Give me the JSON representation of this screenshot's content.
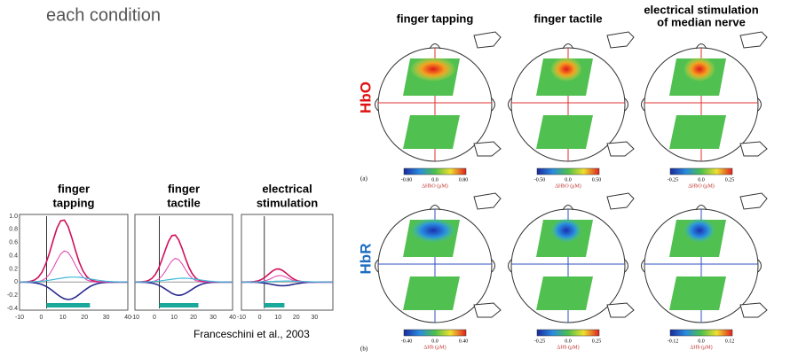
{
  "header": {
    "title": "each condition"
  },
  "time_courses": {
    "yticks": [
      "1.0",
      "0.8",
      "0.6",
      "0.4",
      "0.2",
      "0",
      "-0.2",
      "-0.4"
    ],
    "panels": [
      {
        "label": [
          "finger",
          "tapping"
        ],
        "xticks": [
          "-10",
          "0",
          "10",
          "20",
          "30",
          "40"
        ]
      },
      {
        "label": [
          "finger",
          "tactile"
        ],
        "xticks": [
          "-10",
          "0",
          "10",
          "20",
          "30",
          "40"
        ]
      },
      {
        "label": [
          "electrical",
          "stimulation"
        ],
        "xticks": [
          "-10",
          "0",
          "10",
          "20",
          "30"
        ]
      }
    ],
    "citation": "Franceschini et al., 2003"
  },
  "maps": {
    "columns": [
      [
        "finger tapping"
      ],
      [
        "finger tactile"
      ],
      [
        "electrical stimulation",
        "of median nerve"
      ]
    ],
    "rows": [
      {
        "label": "HbO",
        "panel": "(a)",
        "colorbars": [
          {
            "ticks": [
              "-0.80",
              "0.0",
              "0.80"
            ],
            "unit": "ΔHbO (μM)"
          },
          {
            "ticks": [
              "-0.50",
              "0.0",
              "0.50"
            ],
            "unit": "ΔHbO (μM)"
          },
          {
            "ticks": [
              "-0.25",
              "0.0",
              "0.25"
            ],
            "unit": "ΔHbO (μM)"
          }
        ]
      },
      {
        "label": "HbR",
        "panel": "(b)",
        "colorbars": [
          {
            "ticks": [
              "-0.40",
              "0.0",
              "0.40"
            ],
            "unit": "ΔHb (μM)"
          },
          {
            "ticks": [
              "-0.25",
              "0.0",
              "0.25"
            ],
            "unit": "ΔHb (μM)"
          },
          {
            "ticks": [
              "-0.12",
              "0.0",
              "0.12"
            ],
            "unit": "ΔHb (μM)"
          }
        ]
      }
    ]
  }
}
